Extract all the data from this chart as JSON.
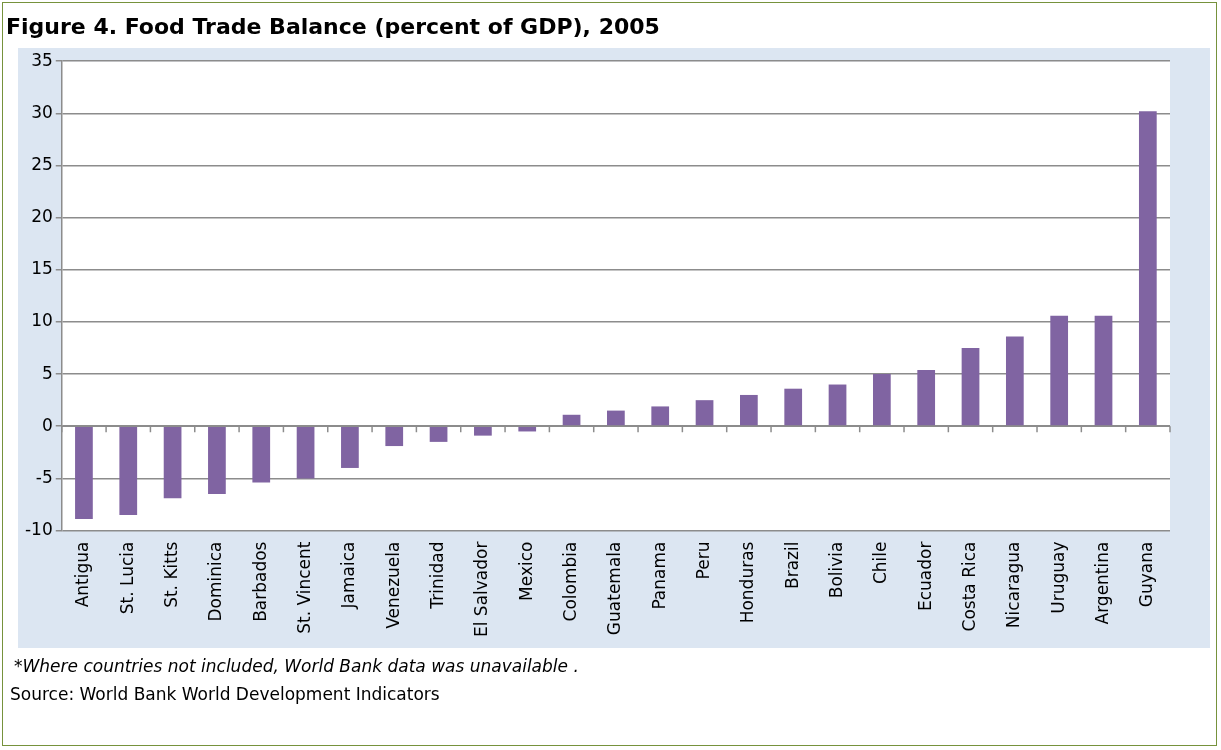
{
  "chart_data": {
    "type": "bar",
    "title": "Figure 4. Food Trade Balance (percent of GDP), 2005",
    "categories": [
      "Antigua",
      "St. Lucia",
      "St. Kitts",
      "Dominica",
      "Barbados",
      "St. Vincent",
      "Jamaica",
      "Venezuela",
      "Trinidad",
      "El Salvador",
      "Mexico",
      "Colombia",
      "Guatemala",
      "Panama",
      "Peru",
      "Honduras",
      "Brazil",
      "Bolivia",
      "Chile",
      "Ecuador",
      "Costa Rica",
      "Nicaragua",
      "Uruguay",
      "Argentina",
      "Guyana"
    ],
    "values": [
      -8.9,
      -8.5,
      -6.9,
      -6.5,
      -5.4,
      -5.0,
      -4.0,
      -1.9,
      -1.5,
      -0.9,
      -0.5,
      1.1,
      1.5,
      1.9,
      2.5,
      3.0,
      3.6,
      4.0,
      5.0,
      5.4,
      7.5,
      8.6,
      10.6,
      10.6,
      30.2
    ],
    "color": "#8064a2",
    "ylim": [
      -10,
      35
    ],
    "yticks": [
      -10,
      -5,
      0,
      5,
      10,
      15,
      20,
      25,
      30,
      35
    ],
    "grid": "y",
    "legend": false,
    "annotations": [
      "*Where countries not included, World Bank data was unavailable .",
      "Source: World Bank World Development Indicators"
    ]
  }
}
